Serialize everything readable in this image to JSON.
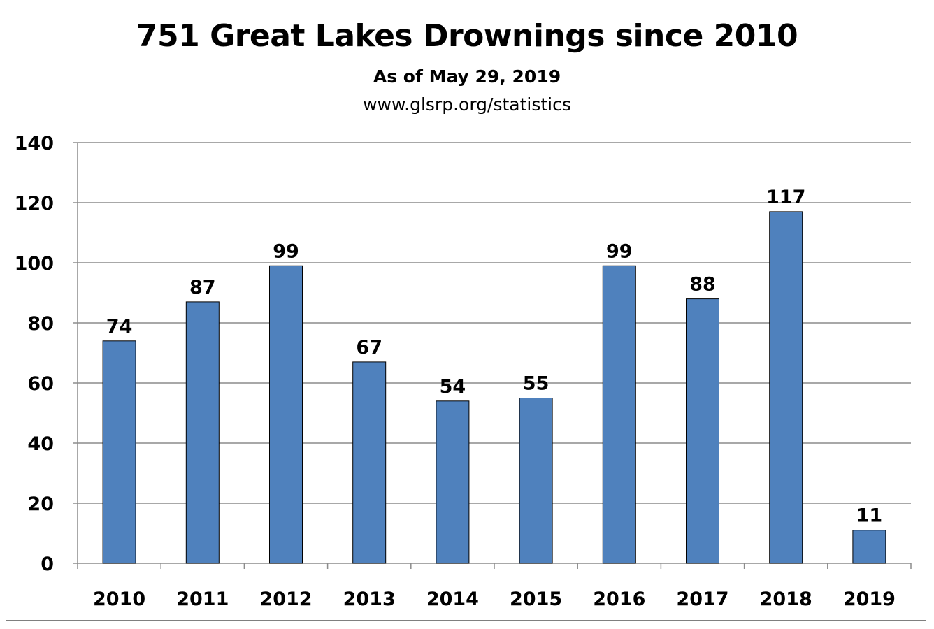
{
  "chart_data": {
    "type": "bar",
    "title": "751 Great Lakes Drownings since 2010",
    "subtitle": "As of May 29, 2019",
    "source": "www.glsrp.org/statistics",
    "categories": [
      "2010",
      "2011",
      "2012",
      "2013",
      "2014",
      "2015",
      "2016",
      "2017",
      "2018",
      "2019"
    ],
    "values": [
      74,
      87,
      99,
      67,
      54,
      55,
      99,
      88,
      117,
      11
    ],
    "data_labels": [
      "74",
      "87",
      "99",
      "67",
      "54",
      "55",
      "99",
      "88",
      "117",
      "11"
    ],
    "yticks": [
      "0",
      "20",
      "40",
      "60",
      "80",
      "100",
      "120",
      "140"
    ],
    "ylim": [
      0,
      140
    ],
    "grid": true,
    "legend": "none",
    "bar_color": "#4f81bd",
    "bar_edge_color": "#000000"
  }
}
